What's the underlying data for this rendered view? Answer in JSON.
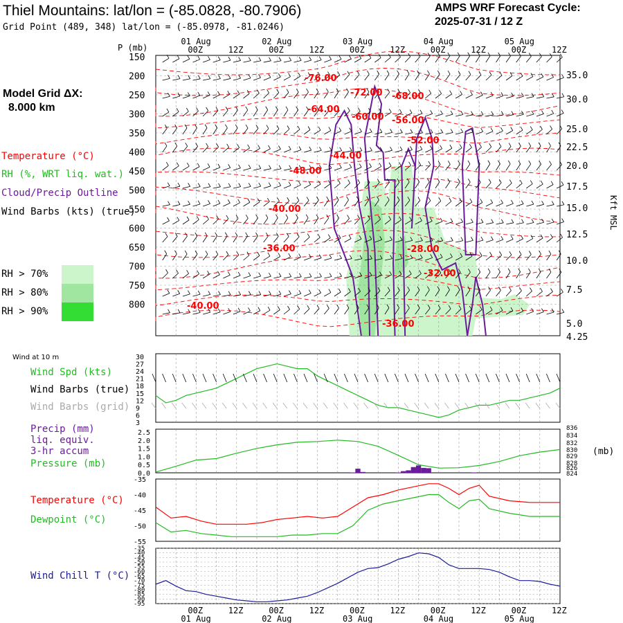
{
  "header": {
    "title": "Thiel Mountains:  lat/lon = (-85.0828, -80.7906)",
    "grid_point": "Grid Point (489, 348) lat/lon = (-85.0978, -81.0246)",
    "cycle_label": "AMPS WRF Forecast Cycle:",
    "cycle_value": "2025-07-31 / 12  Z"
  },
  "model_grid": {
    "line1": "Model Grid ΔX:",
    "line2": "8.000 km"
  },
  "legend": {
    "temperature": "Temperature (°C)",
    "rh": "RH (%, WRT liq. wat.)",
    "cloud": "Cloud/Precip Outline",
    "wind_barbs": "Wind Barbs (kts) (true)",
    "rh70": "RH > 70%",
    "rh80": "RH > 80%",
    "rh90": "RH > 90%"
  },
  "colors": {
    "temperature": "#ff0000",
    "rh": "#22bb22",
    "cloud": "#6a1b9a",
    "rh70": "#ccf5cc",
    "rh80": "#a0e6a0",
    "rh90": "#33dd33",
    "precip": "#6a1b9a",
    "pressure": "#22bb22",
    "windchill": "#1a1a9a",
    "grid": "#999999"
  },
  "time_axis": {
    "top_days": [
      "01 Aug",
      "02 Aug",
      "03 Aug",
      "04 Aug",
      "05 Aug"
    ],
    "top_hours": [
      "00Z",
      "12Z",
      "00Z",
      "12Z",
      "00Z",
      "12Z",
      "00Z",
      "12Z",
      "00Z",
      "12Z"
    ],
    "bottom_hours": [
      "00Z",
      "12Z",
      "00Z",
      "12Z",
      "00Z",
      "12Z",
      "00Z",
      "12Z",
      "00Z",
      "12Z"
    ],
    "bottom_days": [
      "01 Aug",
      "02 Aug",
      "03 Aug",
      "04 Aug",
      "05 Aug"
    ],
    "pressure_unit": "P (mb)",
    "height_unit": "Kft MSL"
  },
  "chart_data": [
    {
      "type": "heatmap",
      "panel": "cross-section",
      "y_pressure_ticks": [
        "150",
        "200",
        "250",
        "300",
        "350",
        "400",
        "450",
        "500",
        "550",
        "600",
        "650",
        "700",
        "750",
        "800"
      ],
      "y_height_ticks": [
        "35.0",
        "30.0",
        "25.0",
        "22.5",
        "20.0",
        "17.5",
        "15.0",
        "12.5",
        "10.0",
        "7.5",
        "5.0",
        "4.25"
      ],
      "temperature_labels": [
        "-76.00",
        "-72.00",
        "-68.00",
        "-64.00",
        "-60.00",
        "-56.00",
        "-52.00",
        "-44.00",
        "-48.00",
        "-40.00",
        "-36.00",
        "-28.00",
        "-32.00",
        "-40.00",
        "-36.00"
      ]
    },
    {
      "type": "line",
      "panel": "wind-10m",
      "title": "Wind at 10 m",
      "series_labels": [
        "Wind Spd (kts)",
        "Wind Barbs (true)",
        "Wind Barbs (grid)"
      ],
      "y_ticks": [
        "30",
        "27",
        "24",
        "21",
        "18",
        "15",
        "12",
        "9",
        "6",
        "3"
      ],
      "ylim": [
        3,
        30
      ],
      "x": [
        0,
        6,
        12,
        18,
        24,
        30,
        36,
        42,
        48,
        54,
        60,
        66,
        72,
        78,
        84,
        90,
        96,
        102,
        108,
        114,
        120,
        126,
        132,
        138,
        144,
        150,
        156,
        162,
        168,
        174,
        180,
        186,
        192,
        198,
        204,
        210,
        216,
        222,
        228,
        234,
        240
      ],
      "values": [
        14,
        11,
        12,
        14,
        15,
        16,
        17,
        19,
        21,
        23,
        25,
        26,
        27,
        26,
        25,
        25,
        22,
        20,
        18,
        16,
        14,
        12,
        10,
        9,
        9,
        8,
        7,
        6,
        5,
        6,
        8,
        9,
        10,
        10,
        11,
        12,
        12,
        13,
        14,
        15,
        17
      ]
    },
    {
      "type": "bar",
      "panel": "precip-pressure",
      "series_labels": [
        "Precip (mm)",
        "liq. equiv.",
        "3-hr accum",
        "Pressure (mb)"
      ],
      "y_left_ticks": [
        "2.5",
        "2.0",
        "1.5",
        "1.0",
        "0.5",
        "0.0"
      ],
      "y_right_ticks": [
        "836",
        "834",
        "832",
        "830",
        "829",
        "828",
        "826",
        "824"
      ],
      "right_unit": "(mb)",
      "precip_x": [
        117,
        120,
        123,
        144,
        147,
        150,
        153,
        156,
        159,
        162,
        189
      ],
      "precip_values": [
        0.02,
        0.25,
        0.05,
        0.02,
        0.1,
        0.15,
        0.35,
        0.45,
        0.3,
        0.28,
        0.02
      ],
      "pressure_x": [
        0,
        12,
        24,
        36,
        48,
        60,
        72,
        84,
        96,
        108,
        120,
        132,
        144,
        156,
        168,
        180,
        192,
        204,
        216,
        228,
        240
      ],
      "pressure_values": [
        824.2,
        825.8,
        827.5,
        827.9,
        829.4,
        830.7,
        831.7,
        832.4,
        832.6,
        833.0,
        832.6,
        831.3,
        828.8,
        826.2,
        825.3,
        825.4,
        826.0,
        827.1,
        828.7,
        829.7,
        830.4
      ]
    },
    {
      "type": "line",
      "panel": "temperature",
      "series": [
        {
          "name": "Temperature (°C)",
          "values": [
            -44,
            -47.5,
            -47,
            -48.5,
            -49.5,
            -49.5,
            -49.5,
            -49,
            -48,
            -47.5,
            -47,
            -47.5,
            -47,
            -44,
            -41,
            -40,
            -38.5,
            -37.5,
            -36.5,
            -36.5,
            -38,
            -40,
            -38,
            -37,
            -40.5,
            -42,
            -42.5,
            -42.5
          ]
        },
        {
          "name": "Dewpoint (°C)",
          "values": [
            -49,
            -52,
            -51.5,
            -52.5,
            -53,
            -53.5,
            -53.5,
            -53.5,
            -53.5,
            -53,
            -53,
            -52.5,
            -52.5,
            -50,
            -45,
            -43,
            -42,
            -41,
            -40,
            -40,
            -42.5,
            -44.5,
            -42,
            -41.5,
            -44.5,
            -46,
            -47,
            -47
          ]
        }
      ],
      "x": [
        0,
        9,
        18,
        27,
        36,
        45,
        54,
        63,
        72,
        81,
        90,
        99,
        108,
        117,
        126,
        135,
        144,
        153,
        162,
        168,
        174,
        180,
        186,
        192,
        198,
        210,
        222,
        240
      ],
      "y_ticks": [
        "-35",
        "-40",
        "-45",
        "-50",
        "-55"
      ],
      "ylim": [
        -55,
        -35
      ]
    },
    {
      "type": "line",
      "panel": "wind-chill",
      "series_labels": [
        "Wind Chill T (°C)"
      ],
      "y_ticks": [
        "-35",
        "-40",
        "-45",
        "-50",
        "-55",
        "-60",
        "-65",
        "-70",
        "-75",
        "-80",
        "-85",
        "-90",
        "-95"
      ],
      "ylim": [
        -95,
        -35
      ],
      "x": [
        0,
        6,
        12,
        18,
        24,
        30,
        36,
        42,
        48,
        54,
        60,
        66,
        72,
        78,
        84,
        90,
        96,
        102,
        108,
        114,
        120,
        126,
        132,
        138,
        144,
        150,
        156,
        162,
        168,
        174,
        180,
        186,
        192,
        198,
        204,
        210,
        216,
        222,
        228,
        234,
        240
      ],
      "values": [
        -74,
        -70,
        -76,
        -81,
        -82,
        -85,
        -87,
        -89,
        -91,
        -92,
        -93,
        -93,
        -92,
        -91,
        -89,
        -87,
        -83,
        -78,
        -73,
        -67,
        -61,
        -57,
        -56,
        -52,
        -47,
        -44,
        -40,
        -41,
        -45,
        -53,
        -57,
        -57,
        -57,
        -58,
        -61,
        -66,
        -70,
        -70,
        -71,
        -74,
        -76
      ]
    }
  ]
}
